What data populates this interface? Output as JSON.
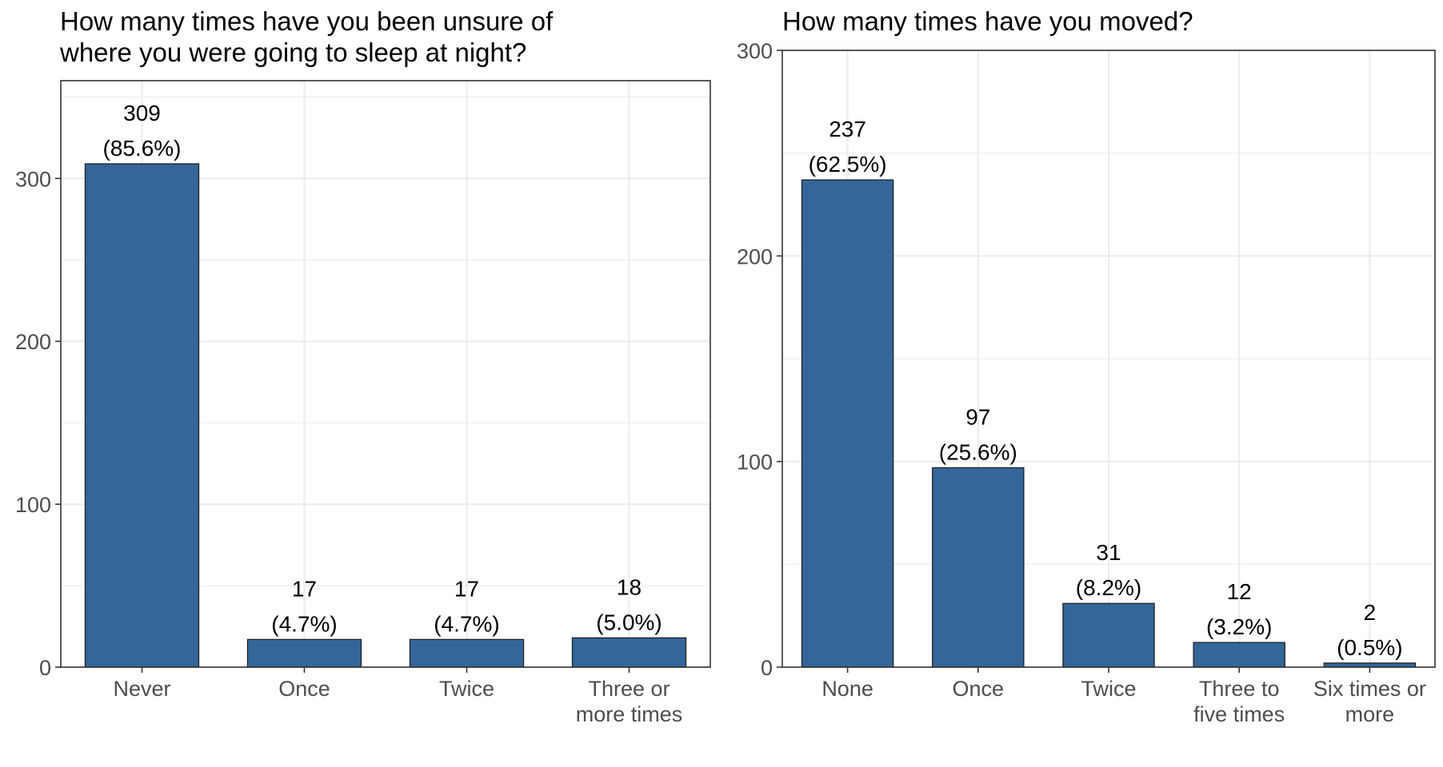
{
  "colors": {
    "bar_fill": "#336699",
    "bar_stroke": "#1a1a1a",
    "grid": "#ebebeb",
    "panel_border": "#333333",
    "tick_text": "#4d4d4d",
    "text": "#000000"
  },
  "chart_data": [
    {
      "type": "bar",
      "title_lines": [
        "How many times have you been unsure of",
        "where you were going to sleep at night?"
      ],
      "categories": [
        [
          "Never"
        ],
        [
          "Once"
        ],
        [
          "Twice"
        ],
        [
          "Three or",
          "more times"
        ]
      ],
      "values": [
        309,
        17,
        17,
        18
      ],
      "data_labels": [
        [
          "309",
          "(85.6%)"
        ],
        [
          "17",
          "(4.7%)"
        ],
        [
          "17",
          "(4.7%)"
        ],
        [
          "18",
          "(5.0%)"
        ]
      ],
      "yticks": [
        0,
        100,
        200,
        300
      ],
      "ylim": [
        0,
        360
      ],
      "xlabel": "",
      "ylabel": "",
      "grid": true
    },
    {
      "type": "bar",
      "title_lines": [
        "How many times have you moved?"
      ],
      "categories": [
        [
          "None"
        ],
        [
          "Once"
        ],
        [
          "Twice"
        ],
        [
          "Three to",
          "five times"
        ],
        [
          "Six times or",
          "more"
        ]
      ],
      "values": [
        237,
        97,
        31,
        12,
        2
      ],
      "data_labels": [
        [
          "237",
          "(62.5%)"
        ],
        [
          "97",
          "(25.6%)"
        ],
        [
          "31",
          "(8.2%)"
        ],
        [
          "12",
          "(3.2%)"
        ],
        [
          "2",
          "(0.5%)"
        ]
      ],
      "yticks": [
        0,
        100,
        200,
        300
      ],
      "ylim": [
        0,
        300
      ],
      "xlabel": "",
      "ylabel": "",
      "grid": true
    }
  ]
}
